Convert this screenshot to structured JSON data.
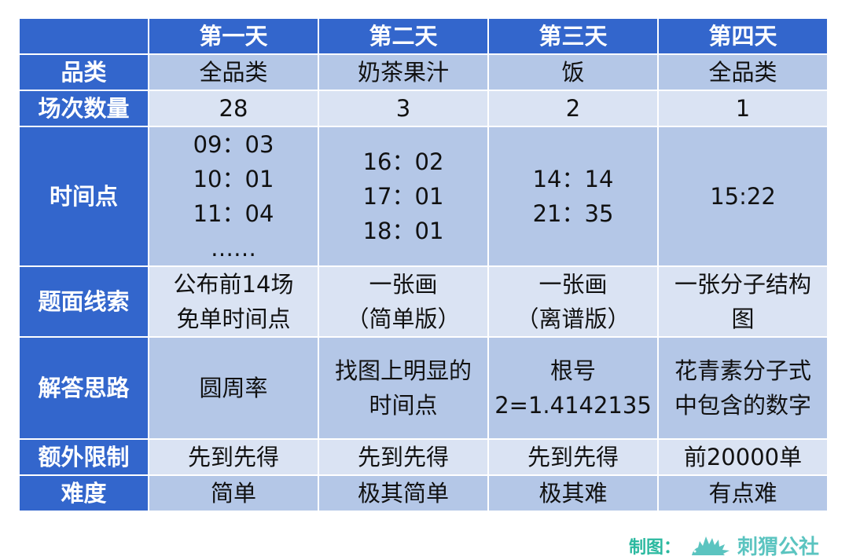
{
  "columns": [
    "",
    "第一天",
    "第二天",
    "第三天",
    "第四天"
  ],
  "rows": [
    {
      "label": "品类",
      "cells": [
        [
          "全品类"
        ],
        [
          "奶茶果汁"
        ],
        [
          "饭"
        ],
        [
          "全品类"
        ]
      ]
    },
    {
      "label": "场次数量",
      "cells": [
        [
          "28"
        ],
        [
          "3"
        ],
        [
          "2"
        ],
        [
          "1"
        ]
      ]
    },
    {
      "label": "时间点",
      "cells": [
        [
          "09：03",
          "10：01",
          "11：04",
          "……"
        ],
        [
          "16：02",
          "17：01",
          "18：01"
        ],
        [
          "14：14",
          "21：35"
        ],
        [
          "15:22"
        ]
      ]
    },
    {
      "label": "题面线索",
      "cells": [
        [
          "公布前14场",
          "免单时间点"
        ],
        [
          "一张画",
          "（简单版）"
        ],
        [
          "一张画",
          "（离谱版）"
        ],
        [
          "一张分子结构",
          "图"
        ]
      ]
    },
    {
      "label": "解答思路",
      "cells": [
        [
          "圆周率"
        ],
        [
          "找图上明显的",
          "时间点"
        ],
        [
          "根号",
          "2=1.4142135"
        ],
        [
          "花青素分子式",
          "中包含的数字"
        ]
      ]
    },
    {
      "label": "额外限制",
      "cells": [
        [
          "先到先得"
        ],
        [
          "先到先得"
        ],
        [
          "先到先得"
        ],
        [
          "前20000单"
        ]
      ]
    },
    {
      "label": "难度",
      "cells": [
        [
          "简单"
        ],
        [
          "极其简单"
        ],
        [
          "极其难"
        ],
        [
          "有点难"
        ]
      ]
    }
  ],
  "footer": {
    "credit": "制图：",
    "brand": "刺猬公社",
    "logo_icon": "hedgehog-icon"
  },
  "colors": {
    "header": "#3366cc",
    "row_dark": "#b4c7e7",
    "row_light": "#dae3f3",
    "credit": "#2bb9a0",
    "brand": "#5bc4c0"
  }
}
